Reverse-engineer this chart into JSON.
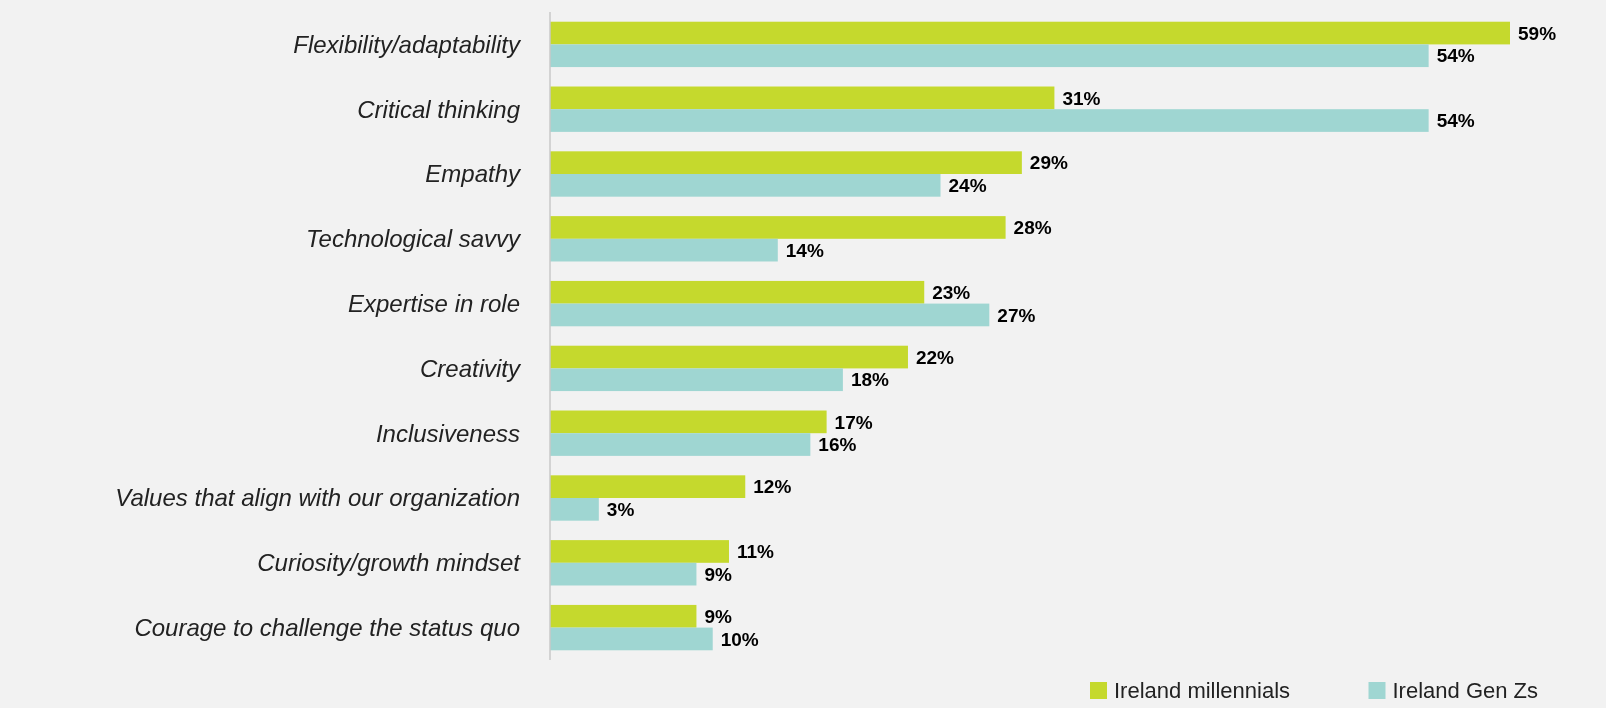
{
  "chart_data": {
    "type": "bar",
    "orientation": "horizontal",
    "legend": "bottom right",
    "categories": [
      "Flexibility/adaptability",
      "Critical thinking",
      "Empathy",
      "Technological savvy",
      "Expertise in role",
      "Creativity",
      "Inclusiveness",
      "Values that align with our organization",
      "Curiosity/growth mindset",
      "Courage to challenge the status quo"
    ],
    "series": [
      {
        "name": "Ireland millennials",
        "color": "#c5d92d",
        "values": [
          59,
          31,
          29,
          28,
          23,
          22,
          17,
          12,
          11,
          9
        ],
        "value_labels": [
          "59%",
          "31%",
          "29%",
          "28%",
          "23%",
          "22%",
          "17%",
          "12%",
          "11%",
          "9%"
        ]
      },
      {
        "name": "Ireland Gen Zs",
        "color": "#9fd6d2",
        "values": [
          54,
          54,
          24,
          14,
          27,
          18,
          16,
          3,
          9,
          10
        ],
        "value_labels": [
          "54%",
          "54%",
          "24%",
          "14%",
          "27%",
          "18%",
          "16%",
          "3%",
          "9%",
          "10%"
        ]
      }
    ]
  }
}
